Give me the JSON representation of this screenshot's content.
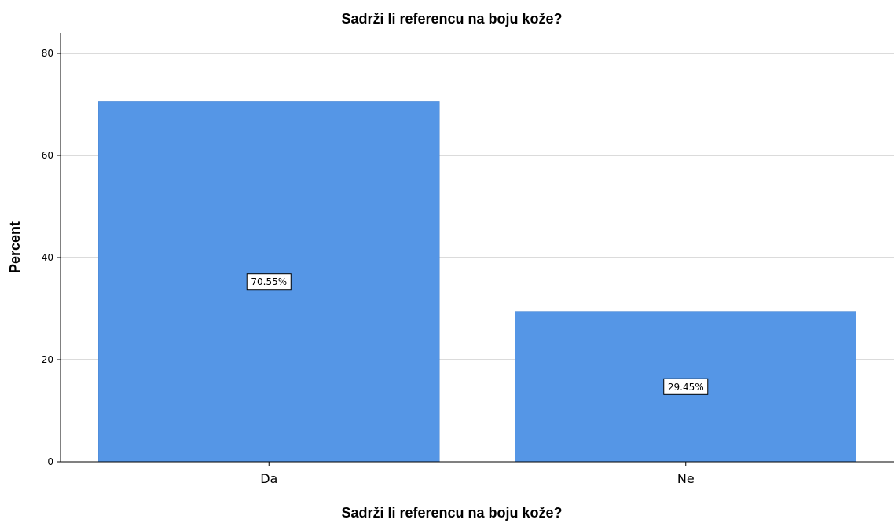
{
  "chart_data": {
    "type": "bar",
    "title": "Sadrži li referencu na boju kože?",
    "xlabel": "Sadrži li referencu na boju kože?",
    "ylabel": "Percent",
    "categories": [
      "Da",
      "Ne"
    ],
    "values": [
      70.55,
      29.45
    ],
    "data_labels": [
      "70.55%",
      "29.45%"
    ],
    "yticks": [
      0,
      20,
      40,
      60,
      80
    ],
    "ylim": [
      0,
      84
    ],
    "grid": true,
    "bar_color": "#5596e6"
  }
}
